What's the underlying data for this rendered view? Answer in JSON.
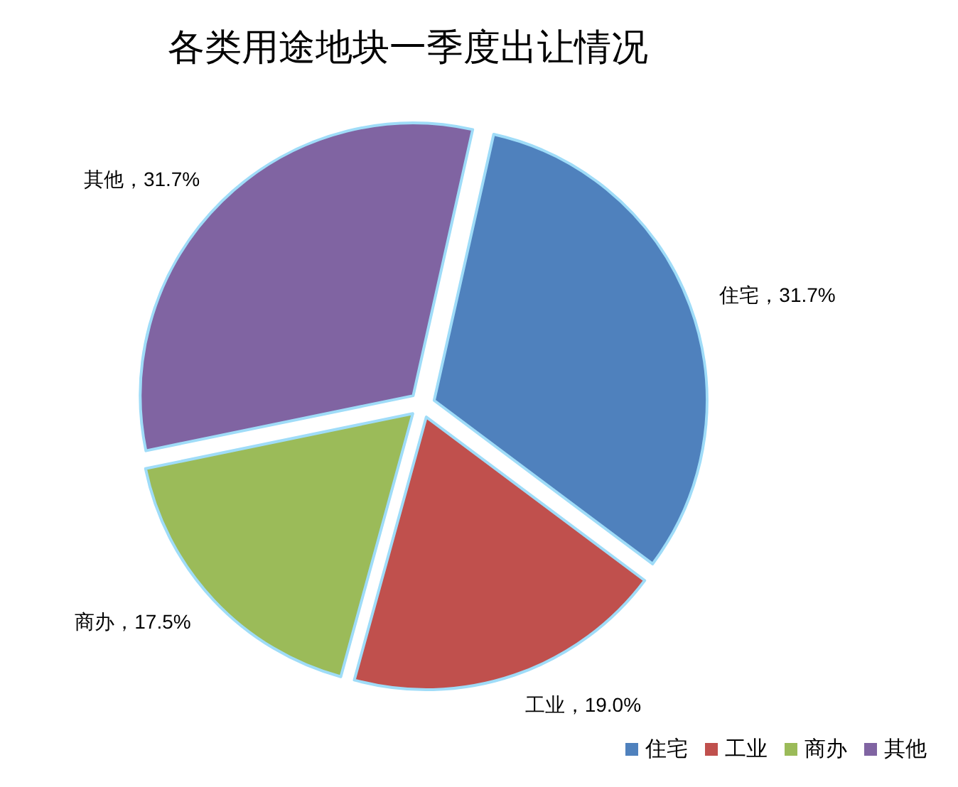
{
  "chart_data": {
    "type": "pie",
    "title": "各类用途地块一季度出让情况",
    "categories": [
      "住宅",
      "工业",
      "商办",
      "其他"
    ],
    "values": [
      31.7,
      19.0,
      17.5,
      31.7
    ],
    "colors": [
      "#4f81bd",
      "#c0504d",
      "#9bbb59",
      "#8064a2"
    ],
    "value_labels": [
      "住宅，31.7%",
      "工业，19.0%",
      "商办，17.5%",
      "其他，31.7%"
    ],
    "legend": "bottom right"
  }
}
